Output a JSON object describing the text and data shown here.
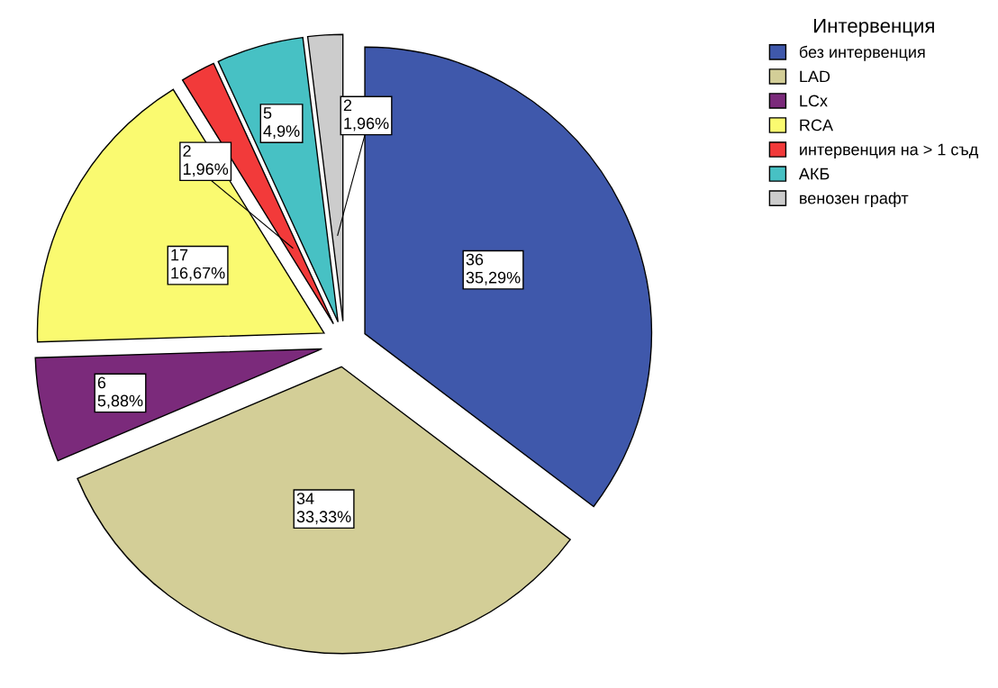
{
  "chart_data": {
    "type": "pie",
    "legend_title": "Интервенция",
    "legend": "top right",
    "categories": [
      "без интервенция",
      "LAD",
      "LCx",
      "RCA",
      "интервенция на > 1 съд",
      "АКБ",
      "венозен графт"
    ],
    "values": [
      36,
      34,
      6,
      17,
      2,
      5,
      2
    ],
    "colors": [
      "#3f58ab",
      "#d3ce97",
      "#7b2a7b",
      "#fafa70",
      "#f23a3a",
      "#47c1c4",
      "#cccccc"
    ],
    "value_labels": [
      "36\n35,29%",
      "34\n33,33%",
      "6\n5,88%",
      "17\n16,67%",
      "2\n1,96%",
      "5\n4,9%",
      "2\n1,96%"
    ]
  }
}
